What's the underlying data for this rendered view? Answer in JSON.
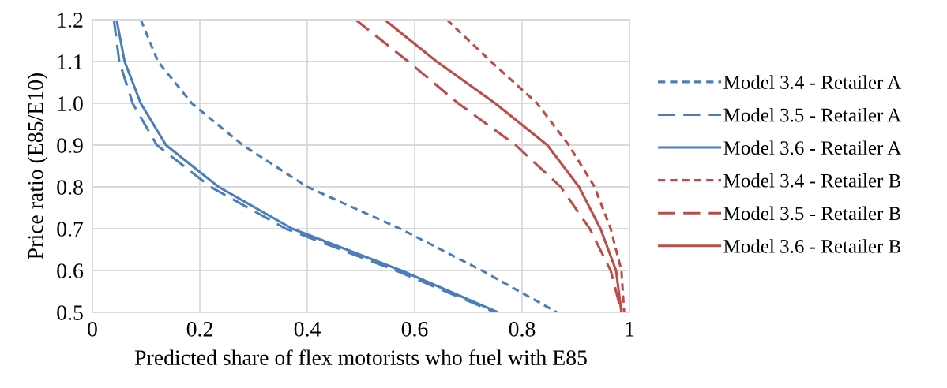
{
  "chart_data": {
    "type": "line",
    "xlabel": "Predicted share of flex motorists who fuel with E85",
    "ylabel": "Price ratio (E85/E10)",
    "xlim": [
      0,
      1
    ],
    "ylim": [
      0.5,
      1.2
    ],
    "xticks": [
      0,
      0.2,
      0.4,
      0.6,
      0.8,
      1
    ],
    "yticks": [
      0.5,
      0.6,
      0.7,
      0.8,
      0.9,
      {
        "value": 1,
        "label": "1.0"
      },
      1.1,
      1.2
    ],
    "grid": true,
    "legend": "right",
    "marker": "none",
    "series": [
      {
        "name": "Model 3.4 - Retailer A",
        "color": "#4a7ebb",
        "line_style": "dotted",
        "x": [
          0.09,
          0.122,
          0.185,
          0.28,
          0.4,
          0.573,
          0.725,
          0.865
        ],
        "values": [
          1.2,
          1.1,
          1.0,
          0.9,
          0.8,
          0.7,
          0.6,
          0.5
        ]
      },
      {
        "name": "Model 3.5 - Retailer A",
        "color": "#4a7ebb",
        "line_style": "dashed",
        "x": [
          0.04,
          0.05,
          0.075,
          0.12,
          0.22,
          0.36,
          0.565,
          0.75
        ],
        "values": [
          1.2,
          1.1,
          1.0,
          0.9,
          0.8,
          0.7,
          0.6,
          0.5
        ]
      },
      {
        "name": "Model 3.6 - Retailer A",
        "color": "#4a7ebb",
        "line_style": "solid",
        "x": [
          0.045,
          0.06,
          0.09,
          0.137,
          0.235,
          0.372,
          0.575,
          0.755
        ],
        "values": [
          1.2,
          1.1,
          1.0,
          0.9,
          0.8,
          0.7,
          0.6,
          0.5
        ]
      },
      {
        "name": "Model 3.4 - Retailer B",
        "color": "#be4b48",
        "line_style": "dotted",
        "x": [
          0.66,
          0.742,
          0.828,
          0.887,
          0.935,
          0.965,
          0.985,
          0.99
        ],
        "values": [
          1.2,
          1.1,
          1.0,
          0.9,
          0.8,
          0.7,
          0.6,
          0.5
        ]
      },
      {
        "name": "Model 3.5 - Retailer B",
        "color": "#be4b48",
        "line_style": "dashed",
        "x": [
          0.49,
          0.588,
          0.681,
          0.788,
          0.872,
          0.926,
          0.965,
          0.985
        ],
        "values": [
          1.2,
          1.1,
          1.0,
          0.9,
          0.8,
          0.7,
          0.6,
          0.5
        ]
      },
      {
        "name": "Model 3.6 - Retailer B",
        "color": "#be4b48",
        "line_style": "solid",
        "x": [
          0.544,
          0.641,
          0.75,
          0.847,
          0.906,
          0.946,
          0.975,
          0.985
        ],
        "values": [
          1.2,
          1.1,
          1.0,
          0.9,
          0.8,
          0.7,
          0.6,
          0.5
        ]
      }
    ]
  }
}
